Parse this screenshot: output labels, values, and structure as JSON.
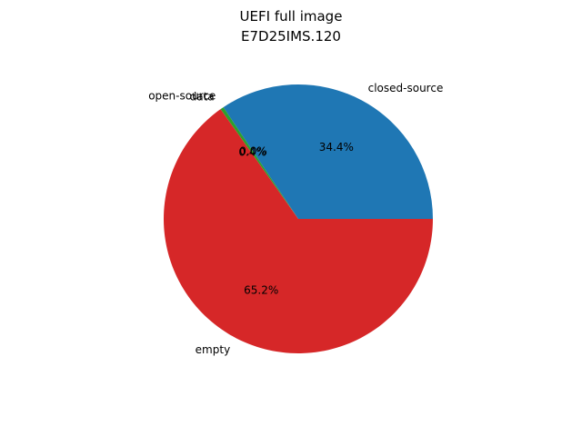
{
  "chart_data": {
    "type": "pie",
    "title": "UEFI full image",
    "subtitle": "E7D25IMS.120",
    "slices": [
      {
        "label": "closed-source",
        "value": 34.4,
        "pct_label": "34.4%",
        "color": "#1f77b4"
      },
      {
        "label": "open-source",
        "value": 0.0,
        "pct_label": "0.0%",
        "color": "#ff7f0e"
      },
      {
        "label": "data",
        "value": 0.4,
        "pct_label": "0.4%",
        "color": "#2ca02c"
      },
      {
        "label": "empty",
        "value": 65.2,
        "pct_label": "65.2%",
        "color": "#d62728"
      }
    ],
    "start_angle_deg": 0,
    "direction": "counterclockwise"
  }
}
